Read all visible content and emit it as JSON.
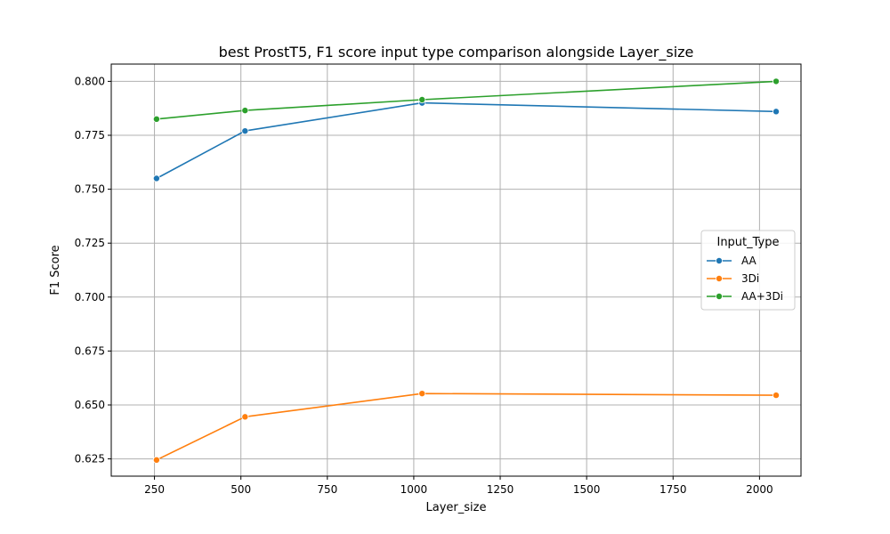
{
  "chart_data": {
    "type": "line",
    "title": "best ProstT5, F1 score input type comparison alongside Layer_size",
    "xlabel": "Layer_size",
    "ylabel": "F1 Score",
    "xlim": [
      125,
      2120
    ],
    "ylim": [
      0.617,
      0.808
    ],
    "xticks": [
      250,
      500,
      750,
      1000,
      1250,
      1500,
      1750,
      2000
    ],
    "yticks": [
      0.625,
      0.65,
      0.675,
      0.7,
      0.725,
      0.75,
      0.775,
      0.8
    ],
    "grid": true,
    "x": [
      256,
      512,
      1024,
      2048
    ],
    "legend": {
      "title": "Input_Type",
      "placement": "center-right"
    },
    "series": [
      {
        "name": "AA",
        "color": "#1f77b4",
        "marker": "circle",
        "values": [
          0.755,
          0.777,
          0.79,
          0.786
        ]
      },
      {
        "name": "3Di",
        "color": "#ff7f0e",
        "marker": "circle",
        "values": [
          0.6245,
          0.6445,
          0.6553,
          0.6545
        ]
      },
      {
        "name": "AA+3Di",
        "color": "#2ca02c",
        "marker": "circle",
        "values": [
          0.7825,
          0.7865,
          0.7915,
          0.8
        ]
      }
    ]
  }
}
